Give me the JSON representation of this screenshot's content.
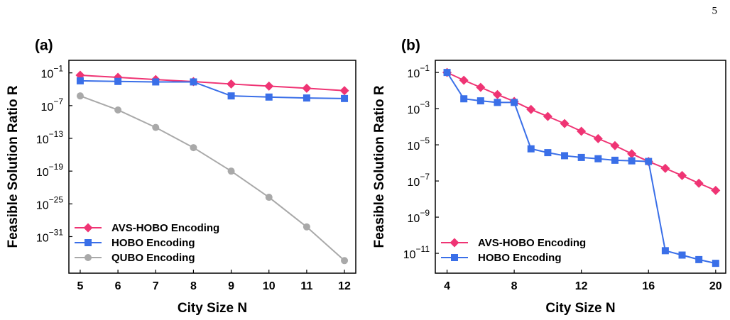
{
  "page_number": "5",
  "chart_data": [
    {
      "type": "line",
      "panel_label": "(a)",
      "x_label": "City Size N",
      "y_label": "Feasible Solution Ratio R",
      "log_y": true,
      "legend": "lower left",
      "x": [
        5,
        6,
        7,
        8,
        9,
        10,
        11,
        12
      ],
      "xlim": [
        4.7,
        12.3
      ],
      "xticks": [
        5,
        6,
        7,
        8,
        9,
        10,
        11,
        12
      ],
      "ylim": [
        2e-38,
        20
      ],
      "yticks": [
        {
          "value": 0.1,
          "label": "10−1"
        },
        {
          "value": 1e-07,
          "label": "10−7"
        },
        {
          "value": 1e-13,
          "label": "10−13"
        },
        {
          "value": 1e-19,
          "label": "10−19"
        },
        {
          "value": 1e-25,
          "label": "10−25"
        },
        {
          "value": 1e-31,
          "label": "10−31"
        }
      ],
      "series": [
        {
          "name": "AVS-HOBO Encoding",
          "color": "#ef3474",
          "marker": "diamond",
          "values": [
            0.037,
            0.015,
            0.006,
            0.0025,
            0.0009,
            0.00037,
            0.00015,
            5.6e-05
          ]
        },
        {
          "name": "HOBO Encoding",
          "color": "#3a6fe8",
          "marker": "square",
          "values": [
            0.0035,
            0.0027,
            0.0022,
            0.0022,
            6e-06,
            3.7e-06,
            2.5e-06,
            2e-06
          ]
        },
        {
          "name": "QUBO Encoding",
          "color": "#a9a9a9",
          "marker": "circle",
          "values": [
            6e-06,
            1.6e-08,
            1e-11,
            2e-15,
            1e-19,
            1.6e-24,
            6e-30,
            4e-36
          ]
        }
      ]
    },
    {
      "type": "line",
      "panel_label": "(b)",
      "x_label": "City Size N",
      "y_label": "Feasible Solution Ratio R",
      "log_y": true,
      "legend": "lower left",
      "x": [
        4,
        5,
        6,
        7,
        8,
        9,
        10,
        11,
        12,
        13,
        14,
        15,
        16,
        17,
        18,
        19,
        20
      ],
      "xlim": [
        3.3,
        20.6
      ],
      "xticks": [
        4,
        8,
        12,
        16,
        20
      ],
      "ylim": [
        8e-13,
        0.47
      ],
      "yticks": [
        {
          "value": 0.1,
          "label": "10−1"
        },
        {
          "value": 0.001,
          "label": "10−3"
        },
        {
          "value": 1e-05,
          "label": "10−5"
        },
        {
          "value": 1e-07,
          "label": "10−7"
        },
        {
          "value": 1e-09,
          "label": "10−9"
        },
        {
          "value": 1e-11,
          "label": "10−11"
        }
      ],
      "series": [
        {
          "name": "AVS-HOBO Encoding",
          "color": "#ef3474",
          "marker": "diamond",
          "values": [
            0.1,
            0.037,
            0.015,
            0.006,
            0.0025,
            0.0009,
            0.00037,
            0.00015,
            5.6e-05,
            2.2e-05,
            9e-06,
            3.2e-06,
            1.2e-06,
            5e-07,
            2e-07,
            7.5e-08,
            3e-08
          ]
        },
        {
          "name": "HOBO Encoding",
          "color": "#3a6fe8",
          "marker": "square",
          "values": [
            0.1,
            0.0035,
            0.0027,
            0.0022,
            0.0022,
            6e-06,
            3.7e-06,
            2.5e-06,
            2e-06,
            1.7e-06,
            1.4e-06,
            1.3e-06,
            1.2e-06,
            1.4e-11,
            8e-12,
            4.5e-12,
            2.8e-12
          ]
        }
      ]
    }
  ]
}
